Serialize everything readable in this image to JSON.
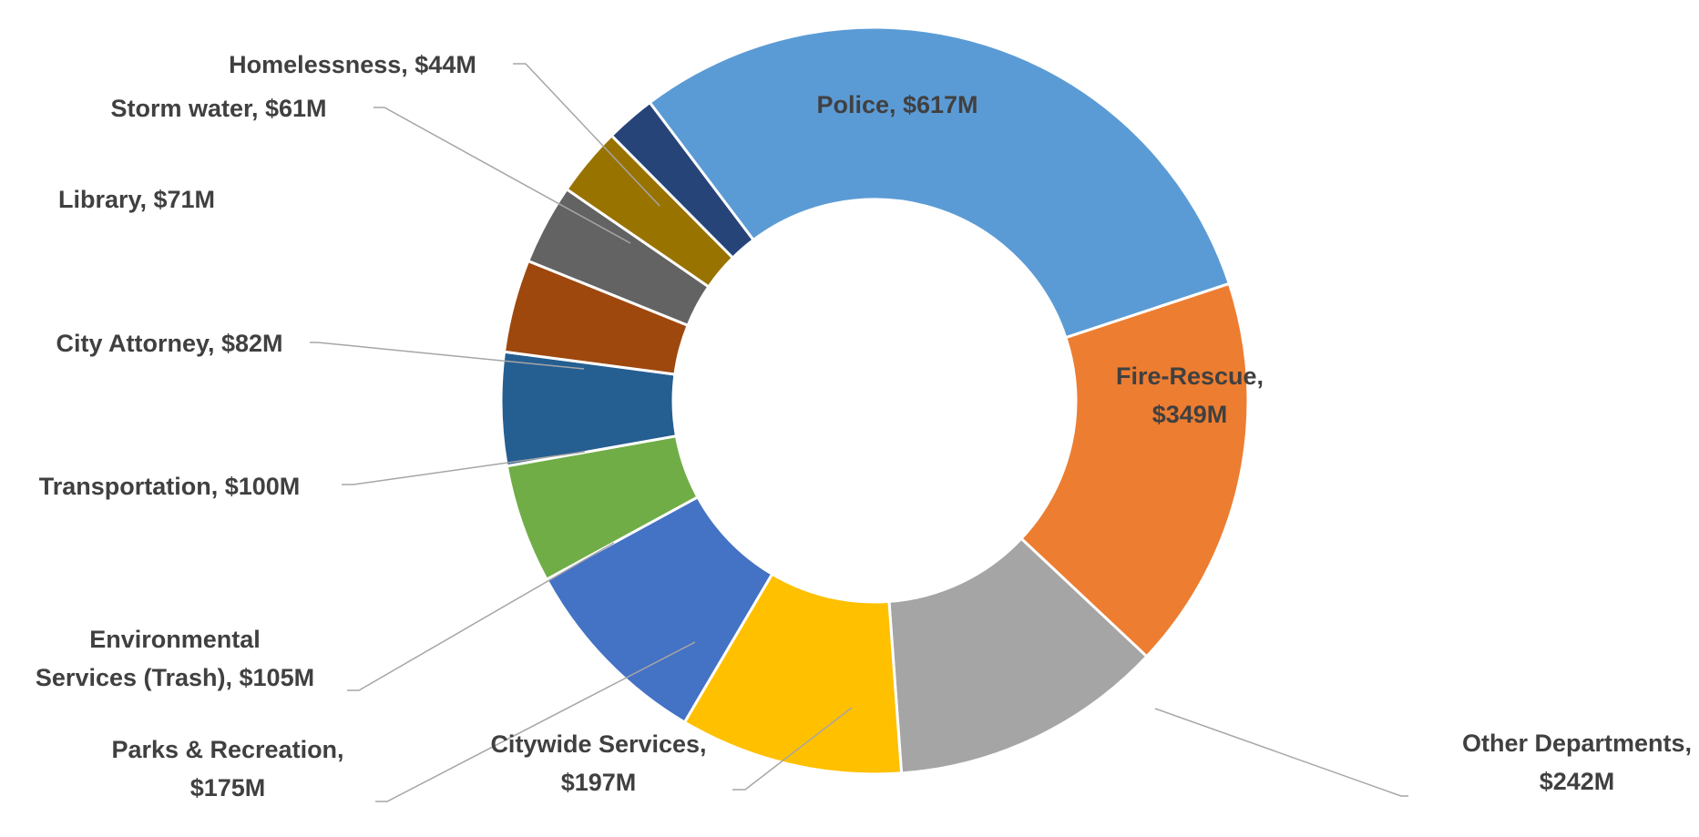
{
  "chart_data": {
    "type": "donut",
    "title": "",
    "slices": [
      {
        "label": "Police",
        "value": 617,
        "display": "Police, $617M",
        "color": "#5b9bd5"
      },
      {
        "label": "Fire-Rescue",
        "value": 349,
        "display": "Fire-Rescue, $349M",
        "color": "#ed7d31"
      },
      {
        "label": "Other Departments",
        "value": 242,
        "display": "Other Departments, $242M",
        "color": "#a5a5a5"
      },
      {
        "label": "Citywide Services",
        "value": 197,
        "display": "Citywide Services, $197M",
        "color": "#ffc000"
      },
      {
        "label": "Parks & Recreation",
        "value": 175,
        "display": "Parks & Recreation, $175M",
        "color": "#4472c4"
      },
      {
        "label": "Environmental Services (Trash)",
        "value": 105,
        "display": "Environmental Services (Trash), $105M",
        "color": "#70ad47"
      },
      {
        "label": "Transportation",
        "value": 100,
        "display": "Transportation, $100M",
        "color": "#255e91"
      },
      {
        "label": "City Attorney",
        "value": 82,
        "display": "City Attorney, $82M",
        "color": "#9e480e"
      },
      {
        "label": "Library",
        "value": 71,
        "display": "Library, $71M",
        "color": "#636363"
      },
      {
        "label": "Storm water",
        "value": 61,
        "display": "Storm water, $61M",
        "color": "#997300"
      },
      {
        "label": "Homelessness",
        "value": 44,
        "display": "Homelessness, $44M",
        "color": "#264478"
      }
    ],
    "start_angle_deg": -37,
    "direction": "clockwise",
    "legend": "none",
    "data_labels": "category and value"
  }
}
